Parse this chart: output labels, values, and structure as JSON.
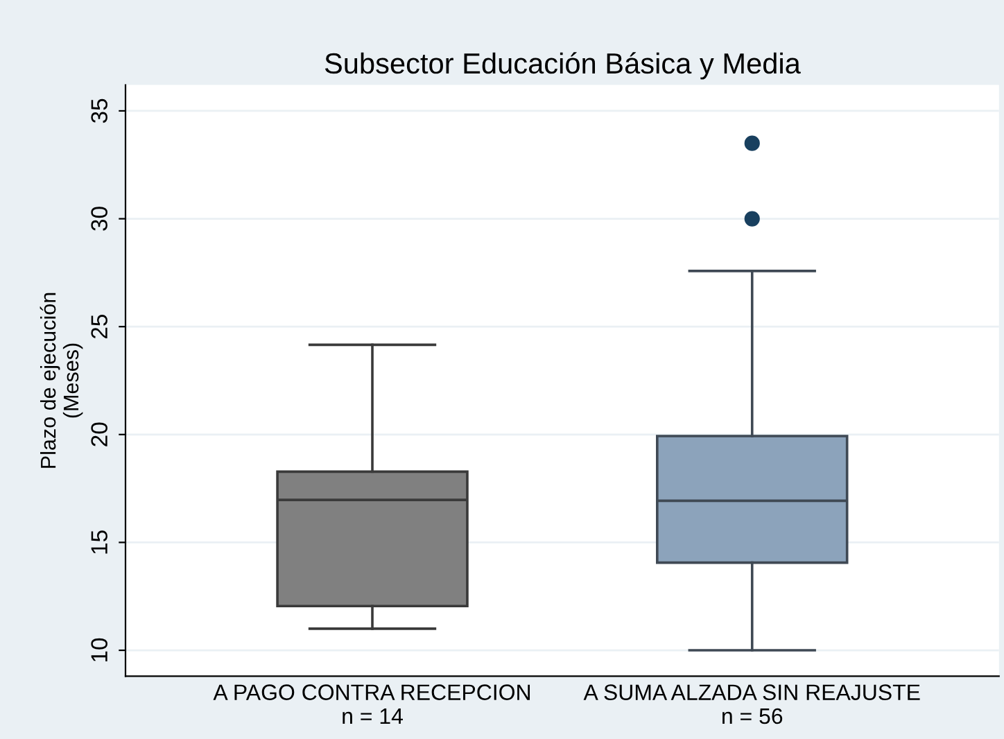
{
  "chart_data": {
    "type": "box",
    "title": "Subsector Educación Básica y Media",
    "ylabel": "Plazo de ejecución\n(Meses)",
    "categories": [
      "A PAGO CONTRA RECEPCION\nn = 14",
      "A SUMA ALZADA SIN REAJUSTE\nn = 56"
    ],
    "series": [
      {
        "colors": [
          "#808080",
          "#8ca3bb"
        ],
        "boxes": [
          {
            "low": 11,
            "q1": 12.05,
            "median": 16.97,
            "q3": 18.28,
            "high": 24.16
          },
          {
            "low": 10,
            "q1": 14.06,
            "median": 16.93,
            "q3": 19.93,
            "high": 27.58,
            "outliers": [
              30,
              33.5
            ]
          }
        ]
      }
    ],
    "ylim": [
      8.8,
      36.2
    ],
    "yticks": [
      10,
      15,
      20,
      25,
      30,
      35
    ],
    "grid": "y",
    "legend": false
  }
}
